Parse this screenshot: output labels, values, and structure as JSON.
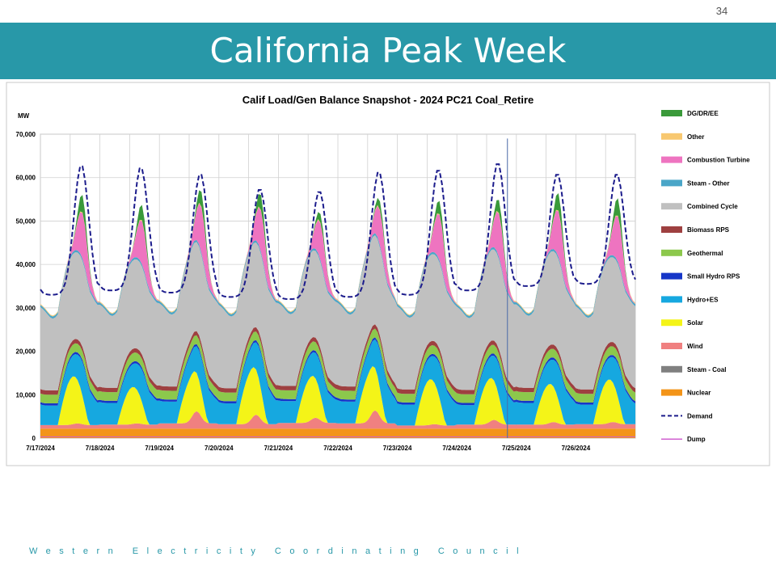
{
  "page": {
    "number": "34",
    "title": "California Peak Week",
    "footer": "Western Electricity Coordinating Council",
    "accent_color": "#2898a8"
  },
  "chart_data": {
    "type": "area",
    "stacked": true,
    "title": "Calif Load/Gen Balance Snapshot - 2024 PC21 Coal_Retire",
    "ylabel": "MW",
    "xlabel": "",
    "ylim": [
      0,
      70000
    ],
    "yticks": [
      0,
      10000,
      20000,
      30000,
      40000,
      50000,
      60000,
      70000
    ],
    "ytick_labels": [
      "0",
      "10,000",
      "20,000",
      "30,000",
      "40,000",
      "50,000",
      "60,000",
      "70,000"
    ],
    "x_tick_labels": [
      "7/17/2024",
      "7/18/2024",
      "7/19/2024",
      "7/20/2024",
      "7/21/2024",
      "7/22/2024",
      "7/23/2024",
      "7/24/2024",
      "7/25/2024",
      "7/26/2024"
    ],
    "x_range_days": [
      0,
      10
    ],
    "grid": true,
    "legend_position": "right",
    "vertical_marker_day": 7.85,
    "legend": [
      {
        "name": "DG/DR/EE",
        "color": "#3a9a3a",
        "style": "bar"
      },
      {
        "name": "Other",
        "color": "#f8c870",
        "style": "bar"
      },
      {
        "name": "Combustion Turbine",
        "color": "#ee74c0",
        "style": "bar"
      },
      {
        "name": "Steam - Other",
        "color": "#4aa6c8",
        "style": "bar"
      },
      {
        "name": "Combined Cycle",
        "color": "#c0c0c0",
        "style": "bar"
      },
      {
        "name": "Biomass RPS",
        "color": "#9e4040",
        "style": "bar"
      },
      {
        "name": "Geothermal",
        "color": "#8cc84c",
        "style": "bar"
      },
      {
        "name": "Small Hydro RPS",
        "color": "#1636c8",
        "style": "bar"
      },
      {
        "name": "Hydro+ES",
        "color": "#16a8e0",
        "style": "bar"
      },
      {
        "name": "Solar",
        "color": "#f4f418",
        "style": "bar"
      },
      {
        "name": "Wind",
        "color": "#f08080",
        "style": "bar"
      },
      {
        "name": "Steam - Coal",
        "color": "#808080",
        "style": "bar"
      },
      {
        "name": "Nuclear",
        "color": "#f39418",
        "style": "bar"
      },
      {
        "name": "Demand",
        "color": "#1c1c8c",
        "style": "dashed"
      },
      {
        "name": "Dump",
        "color": "#d060d0",
        "style": "line"
      }
    ],
    "daily": {
      "days": [
        "7/17/2024",
        "7/18/2024",
        "7/19/2024",
        "7/20/2024",
        "7/21/2024",
        "7/22/2024",
        "7/23/2024",
        "7/24/2024",
        "7/25/2024",
        "7/26/2024"
      ],
      "nuclear_mw": [
        2200,
        2200,
        2200,
        2200,
        2200,
        2200,
        2200,
        2200,
        2200,
        2200
      ],
      "steam_coal_mw": [
        0,
        0,
        0,
        0,
        0,
        0,
        0,
        0,
        0,
        0
      ],
      "wind_night_mw": [
        800,
        900,
        1200,
        1000,
        1300,
        1200,
        700,
        900,
        900,
        1000
      ],
      "wind_afternoon_mw": [
        1200,
        1200,
        4000,
        3200,
        2500,
        4200,
        1000,
        2000,
        1500,
        1500
      ],
      "solar_peak_mw": [
        11000,
        8500,
        9800,
        11500,
        10000,
        10800,
        10500,
        10000,
        9000,
        10000
      ],
      "hydro_es_night_mw": [
        4500,
        5000,
        5000,
        4800,
        5000,
        5000,
        4800,
        4500,
        5000,
        4500
      ],
      "hydro_es_evening_mw": [
        8500,
        8000,
        8200,
        9000,
        7500,
        9500,
        8500,
        8000,
        8500,
        8500
      ],
      "small_hydro_rps_mw": [
        500,
        500,
        500,
        500,
        500,
        500,
        500,
        500,
        500,
        500
      ],
      "geothermal_mw": [
        2000,
        2000,
        2000,
        2000,
        2000,
        2000,
        2000,
        2000,
        2000,
        2000
      ],
      "biomass_rps_mw": [
        1000,
        1000,
        1000,
        1000,
        1000,
        1000,
        1000,
        1000,
        1000,
        1000
      ],
      "combined_cycle_max_mw": [
        20000,
        20500,
        20500,
        19500,
        20000,
        20500,
        20000,
        21000,
        21500,
        19500
      ],
      "steam_other_mw": [
        500,
        500,
        500,
        500,
        500,
        500,
        500,
        500,
        500,
        500
      ],
      "ct_peak_mw": [
        10500,
        10000,
        10500,
        9500,
        8500,
        8000,
        10500,
        10000,
        10500,
        10500
      ],
      "other_mw": [
        200,
        200,
        200,
        200,
        200,
        200,
        200,
        200,
        200,
        200
      ],
      "dg_dr_ee_peak_mw": [
        4000,
        3500,
        3500,
        3500,
        2000,
        2000,
        3000,
        3000,
        4000,
        4000
      ],
      "demand_peak_mw": [
        63000,
        62500,
        61000,
        57500,
        57000,
        61500,
        62000,
        63500,
        61000,
        61000
      ],
      "demand_min_mw": [
        33000,
        34000,
        33500,
        32500,
        32000,
        32500,
        33000,
        34000,
        35000,
        35500
      ],
      "dump_mw": [
        0,
        0,
        0,
        0,
        0,
        0,
        0,
        0,
        0,
        0
      ]
    }
  }
}
